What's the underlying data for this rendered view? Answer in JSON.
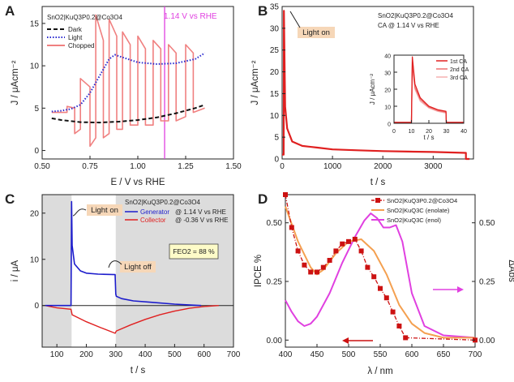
{
  "chart_data": [
    {
      "panel": "A",
      "type": "line",
      "title": "SnO2|KuQ3P0.2@Co3O4",
      "annotation": "1.14 V vs RHE",
      "xlabel": "E / V vs RHE",
      "ylabel": "J / μAcm⁻²",
      "xlim": [
        0.5,
        1.5
      ],
      "ylim": [
        -1,
        17
      ],
      "xticks": [
        "0.50",
        "0.75",
        "1.00",
        "1.25",
        "1.50"
      ],
      "yticks": [
        "0",
        "5",
        "10",
        "15"
      ],
      "marker_line_x": 1.14,
      "legend": [
        "Dark",
        "Light",
        "Chopped"
      ],
      "series": [
        {
          "name": "Dark",
          "color": "#111111",
          "style": "dashed",
          "x": [
            0.55,
            0.6,
            0.7,
            0.8,
            0.9,
            1.0,
            1.1,
            1.2,
            1.3,
            1.35
          ],
          "y": [
            3.8,
            3.6,
            3.35,
            3.3,
            3.4,
            3.6,
            3.9,
            4.4,
            5.0,
            5.4
          ]
        },
        {
          "name": "Light",
          "color": "#2a2ad0",
          "style": "dotted",
          "x": [
            0.55,
            0.6,
            0.65,
            0.7,
            0.75,
            0.8,
            0.85,
            0.88,
            0.92,
            1.0,
            1.1,
            1.2,
            1.3,
            1.35
          ],
          "y": [
            4.6,
            4.7,
            4.9,
            5.4,
            6.8,
            8.8,
            10.8,
            11.3,
            11.0,
            10.4,
            10.2,
            10.3,
            10.8,
            11.5
          ]
        },
        {
          "name": "Chopped",
          "color": "#f08080",
          "style": "solid",
          "x": [
            0.55,
            0.63,
            0.63,
            0.67,
            0.67,
            0.7,
            0.7,
            0.75,
            0.75,
            0.78,
            0.78,
            0.82,
            0.82,
            0.85,
            0.85,
            0.89,
            0.89,
            0.92,
            0.92,
            0.96,
            0.96,
            1.0,
            1.0,
            1.04,
            1.04,
            1.08,
            1.08,
            1.12,
            1.12,
            1.16,
            1.16,
            1.2,
            1.2,
            1.25,
            1.25,
            1.29,
            1.29,
            1.35
          ],
          "y": [
            4.5,
            4.5,
            5.2,
            5.0,
            2.0,
            2.5,
            8.5,
            7.5,
            0.5,
            1.5,
            16.0,
            13.0,
            1.5,
            2.0,
            15.5,
            13.5,
            2.5,
            2.5,
            14.0,
            12.5,
            3.0,
            3.0,
            13.5,
            12.0,
            3.0,
            3.0,
            13.0,
            12.0,
            3.5,
            3.5,
            12.5,
            11.5,
            3.5,
            4.0,
            12.5,
            11.5,
            4.5,
            5.0
          ]
        }
      ]
    },
    {
      "panel": "B",
      "type": "line",
      "title": "SnO2|KuQ3P0.2@Co3O4",
      "subtitle": "CA @ 1.14 V vs RHE",
      "annotation": "Light on",
      "xlabel": "t / s",
      "ylabel": "J / μAcm⁻²",
      "xlim": [
        0,
        3800
      ],
      "ylim": [
        0,
        35
      ],
      "xticks": [
        "0",
        "1000",
        "2000",
        "3000"
      ],
      "yticks": [
        "0",
        "5",
        "10",
        "15",
        "20",
        "25",
        "30",
        "35"
      ],
      "series": [
        {
          "name": "CA",
          "color": "#e02020",
          "x": [
            0,
            30,
            35,
            60,
            100,
            200,
            400,
            700,
            1000,
            1500,
            2000,
            2500,
            3000,
            3650,
            3650,
            3720
          ],
          "y": [
            1.0,
            1.0,
            34.0,
            12.0,
            7.0,
            4.0,
            3.0,
            2.6,
            2.2,
            2.0,
            1.8,
            1.7,
            1.6,
            1.4,
            0.0,
            0.0
          ]
        }
      ],
      "inset": {
        "xlabel": "t / s",
        "ylabel": "J / μAcm⁻²",
        "xlim": [
          0,
          40
        ],
        "ylim": [
          0,
          40
        ],
        "xticks": [
          "0",
          "10",
          "20",
          "30",
          "40"
        ],
        "yticks": [
          "0",
          "10",
          "20",
          "30",
          "40"
        ],
        "legend": [
          "1st CA",
          "2nd CA",
          "3rd CA"
        ],
        "series": [
          {
            "name": "1st CA",
            "color": "#e02020",
            "x": [
              0,
              10,
              10.5,
              12,
              15,
              20,
              25,
              29.8,
              30,
              40
            ],
            "y": [
              0.5,
              0.5,
              39,
              23,
              15,
              10,
              8,
              7,
              0.5,
              0.5
            ]
          },
          {
            "name": "2nd CA",
            "color": "#ee7070",
            "x": [
              0,
              10,
              10.5,
              12,
              15,
              20,
              25,
              29.8,
              30,
              40
            ],
            "y": [
              0.5,
              0.5,
              36,
              21,
              14,
              9.5,
              7.5,
              6.5,
              0.5,
              0.5
            ]
          },
          {
            "name": "3rd CA",
            "color": "#f5b0b0",
            "x": [
              0,
              10,
              10.5,
              12,
              15,
              20,
              25,
              29.8,
              30,
              40
            ],
            "y": [
              0.5,
              0.5,
              33,
              20,
              13,
              9,
              7,
              6,
              0.5,
              0.5
            ]
          }
        ]
      }
    },
    {
      "panel": "C",
      "type": "line",
      "title": "SnO2|KuQ3P0.2@Co3O4",
      "xlabel": "t / s",
      "ylabel": "i / μA",
      "xlim": [
        50,
        700
      ],
      "ylim": [
        -9,
        24
      ],
      "xticks": [
        "100",
        "200",
        "300",
        "400",
        "500",
        "600",
        "700"
      ],
      "yticks": [
        "0",
        "10",
        "20"
      ],
      "annotations": [
        "Light on",
        "Light off"
      ],
      "fe_box": "FEO2 = 88 %",
      "shaded_x": [
        [
          50,
          150
        ],
        [
          300,
          700
        ]
      ],
      "legend": [
        {
          "name": "Generator",
          "text": "@ 1.14 V vs RHE"
        },
        {
          "name": "Collector",
          "text": "@ -0.36 V vs RHE"
        }
      ],
      "series": [
        {
          "name": "Generator",
          "color": "#1c1ccc",
          "x": [
            60,
            148,
            150,
            152,
            160,
            180,
            200,
            240,
            298,
            300,
            302,
            320,
            360,
            420,
            500,
            560,
            590
          ],
          "y": [
            0,
            0,
            22.5,
            13,
            9,
            7.5,
            7,
            6.8,
            6.7,
            2.5,
            2,
            1.5,
            1.0,
            0.7,
            0.3,
            0.1,
            0
          ]
        },
        {
          "name": "Collector",
          "color": "#e02020",
          "x": [
            60,
            100,
            148,
            152,
            200,
            250,
            298,
            302,
            350,
            400,
            450,
            500,
            550,
            600,
            650
          ],
          "y": [
            0,
            -0.5,
            -0.8,
            -2,
            -3.5,
            -4.8,
            -6,
            -5.5,
            -4.2,
            -3,
            -2,
            -1.2,
            -0.6,
            -0.2,
            0
          ]
        }
      ]
    },
    {
      "panel": "D",
      "type": "line",
      "xlabel": "λ / nm",
      "ylabel": "IPCE %",
      "ylabel_right": "ΔAbs",
      "xlim": [
        400,
        700
      ],
      "ylim": [
        -0.03,
        0.62
      ],
      "ylim_right": [
        -0.03,
        0.62
      ],
      "xticks": [
        "400",
        "450",
        "500",
        "550",
        "600",
        "650",
        "700"
      ],
      "yticks": [
        "0.00",
        "0.25",
        "0.50"
      ],
      "yticks_right": [
        "0.00",
        "0.25",
        "0.50"
      ],
      "legend": [
        {
          "name": "SnO2|KuQ3P0.2@Co3O4"
        },
        {
          "name": "SnO2|KuQ3C (enolate)"
        },
        {
          "name": "SnO2|KuQ3C (enol)"
        }
      ],
      "series": [
        {
          "name": "SnO2|KuQ3P0.2@Co3O4",
          "axis": "left",
          "color": "#cc1111",
          "style": "dashdot",
          "marker": "square",
          "x": [
            400,
            410,
            420,
            430,
            440,
            450,
            460,
            470,
            480,
            490,
            500,
            510,
            520,
            530,
            540,
            550,
            560,
            570,
            580,
            590,
            700
          ],
          "y": [
            0.62,
            0.48,
            0.38,
            0.32,
            0.29,
            0.29,
            0.31,
            0.34,
            0.38,
            0.41,
            0.42,
            0.43,
            0.38,
            0.31,
            0.27,
            0.22,
            0.18,
            0.12,
            0.06,
            0.01,
            0.0
          ]
        },
        {
          "name": "SnO2|KuQ3C (enolate)",
          "axis": "right",
          "color": "#f4a050",
          "style": "solid",
          "x": [
            400,
            420,
            440,
            450,
            460,
            480,
            500,
            520,
            540,
            560,
            580,
            600,
            620,
            650,
            700
          ],
          "y": [
            0.57,
            0.42,
            0.31,
            0.28,
            0.3,
            0.37,
            0.42,
            0.43,
            0.38,
            0.28,
            0.15,
            0.07,
            0.03,
            0.01,
            0.01
          ]
        },
        {
          "name": "SnO2|KuQ3C (enol)",
          "axis": "right",
          "color": "#e040e0",
          "style": "solid",
          "x": [
            400,
            410,
            420,
            430,
            440,
            450,
            470,
            490,
            510,
            525,
            535,
            545,
            555,
            565,
            575,
            585,
            600,
            620,
            650,
            700
          ],
          "y": [
            0.17,
            0.12,
            0.08,
            0.06,
            0.07,
            0.1,
            0.2,
            0.33,
            0.44,
            0.51,
            0.54,
            0.52,
            0.48,
            0.48,
            0.49,
            0.42,
            0.2,
            0.06,
            0.02,
            0.01
          ]
        }
      ],
      "arrows": [
        {
          "direction": "right",
          "color": "#e040e0"
        },
        {
          "direction": "left",
          "color": "#cc1111"
        }
      ]
    }
  ]
}
